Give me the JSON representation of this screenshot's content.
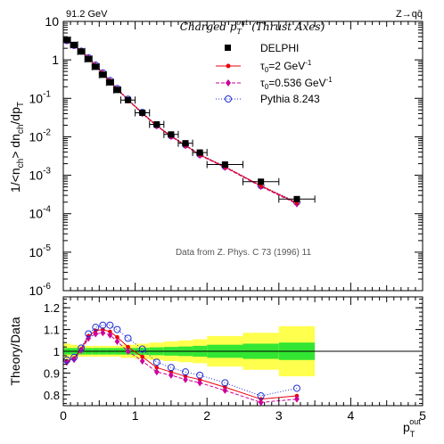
{
  "header": {
    "energy": "91.2 GeV",
    "process": "Z→qq̄"
  },
  "chart_data": [
    {
      "type": "scatter",
      "panel": "main",
      "title": "Charged p_T^out (Thrust Axes)",
      "title_parts": {
        "base": "Charged p",
        "sub": "T",
        "sup": "out",
        "rest": " (Thrust Axes)"
      },
      "ylabel": "1/<n_ch> dn_ch/dp_T",
      "ylabel_parts": {
        "a": "1/<n",
        "a_sub": "ch",
        "b": "> dn",
        "b_sub": "ch",
        "c": "/dp",
        "c_sub": "T"
      },
      "yscale": "log",
      "xlim": [
        0,
        5
      ],
      "ylim": [
        1e-06,
        10
      ],
      "y_ticks": [
        {
          "value": 10,
          "text": "10"
        },
        {
          "value": 1,
          "text": "1"
        },
        {
          "value": 0.1,
          "base": "10",
          "exp": "-1"
        },
        {
          "value": 0.01,
          "base": "10",
          "exp": "-2"
        },
        {
          "value": 0.001,
          "base": "10",
          "exp": "-3"
        },
        {
          "value": 0.0001,
          "base": "10",
          "exp": "-4"
        },
        {
          "value": 1e-05,
          "base": "10",
          "exp": "-5"
        },
        {
          "value": 1e-06,
          "base": "10",
          "exp": "-6"
        }
      ],
      "annotation": "Data from Z. Phys. C 73 (1996) 11",
      "legend_position": "top-right",
      "series": [
        {
          "name": "DELPHI",
          "style": "data",
          "color": "#000000",
          "x": [
            0.05,
            0.15,
            0.25,
            0.35,
            0.45,
            0.55,
            0.65,
            0.75,
            0.9,
            1.1,
            1.3,
            1.5,
            1.7,
            1.9,
            2.25,
            2.75,
            3.25
          ],
          "xerr": [
            0.05,
            0.05,
            0.05,
            0.05,
            0.05,
            0.05,
            0.05,
            0.05,
            0.1,
            0.1,
            0.1,
            0.1,
            0.1,
            0.1,
            0.25,
            0.25,
            0.25
          ],
          "y": [
            3.3,
            2.45,
            1.65,
            1.05,
            0.66,
            0.41,
            0.26,
            0.165,
            0.09,
            0.042,
            0.021,
            0.0115,
            0.0068,
            0.0039,
            0.0019,
            0.00068,
            0.00024
          ]
        },
        {
          "name": "τ_0=2 GeV^-1",
          "label_parts": {
            "base": "τ",
            "sub": "0",
            "rest": "=2 GeV",
            "sup": "-1"
          },
          "style": "line-circle",
          "color": "#e8000b",
          "x": [
            0.05,
            0.15,
            0.25,
            0.35,
            0.45,
            0.55,
            0.65,
            0.75,
            0.9,
            1.1,
            1.3,
            1.5,
            1.7,
            1.9,
            2.25,
            2.75,
            3.25
          ],
          "y": [
            3.15,
            2.37,
            1.67,
            1.13,
            0.72,
            0.45,
            0.283,
            0.175,
            0.092,
            0.041,
            0.0195,
            0.0104,
            0.006,
            0.0034,
            0.00165,
            0.00053,
            0.00019
          ]
        },
        {
          "name": "τ_0=0.536 GeV^-1",
          "label_parts": {
            "base": "τ",
            "sub": "0",
            "rest": "=0.536 GeV",
            "sup": "-1"
          },
          "style": "dash-diamond",
          "color": "#cc0099",
          "x": [
            0.05,
            0.15,
            0.25,
            0.35,
            0.45,
            0.55,
            0.65,
            0.75,
            0.9,
            1.1,
            1.3,
            1.5,
            1.7,
            1.9,
            2.25,
            2.75,
            3.25
          ],
          "y": [
            3.13,
            2.35,
            1.66,
            1.12,
            0.71,
            0.445,
            0.28,
            0.172,
            0.09,
            0.04,
            0.019,
            0.0101,
            0.0059,
            0.0033,
            0.0016,
            0.00051,
            0.00018
          ]
        },
        {
          "name": "Pythia 8.243",
          "style": "dot-open-circle",
          "color": "#1f2fd6",
          "x": [
            0.05,
            0.15,
            0.25,
            0.35,
            0.45,
            0.55,
            0.65,
            0.75,
            0.9,
            1.1,
            1.3,
            1.5,
            1.7,
            1.9,
            2.25,
            2.75,
            3.25
          ],
          "y": [
            3.17,
            2.38,
            1.68,
            1.14,
            0.73,
            0.46,
            0.29,
            0.179,
            0.095,
            0.043,
            0.02,
            0.0107,
            0.0062,
            0.0035,
            0.0017,
            0.00054,
            0.0002
          ]
        }
      ]
    },
    {
      "type": "line",
      "panel": "ratio",
      "ylabel": "Theory/Data",
      "xlabel": "p_T^out",
      "xlabel_parts": {
        "base": "p",
        "sub": "T",
        "sup": "out"
      },
      "xlim": [
        0,
        5
      ],
      "ylim": [
        0.75,
        1.25
      ],
      "x_ticks": [
        0,
        1,
        2,
        3,
        4,
        5
      ],
      "y_ticks": [
        0.8,
        0.9,
        1,
        1.1,
        1.2
      ],
      "bands": {
        "bin_edges": [
          0,
          0.1,
          0.2,
          0.3,
          0.4,
          0.5,
          0.6,
          0.7,
          0.8,
          1.0,
          1.2,
          1.4,
          1.6,
          1.8,
          2.0,
          2.5,
          3.0,
          3.5
        ],
        "stat_half_width": [
          0.015,
          0.015,
          0.015,
          0.015,
          0.015,
          0.015,
          0.015,
          0.015,
          0.015,
          0.016,
          0.018,
          0.02,
          0.022,
          0.025,
          0.03,
          0.035,
          0.04
        ],
        "total_half_width": [
          0.035,
          0.03,
          0.025,
          0.025,
          0.025,
          0.025,
          0.025,
          0.025,
          0.03,
          0.035,
          0.04,
          0.045,
          0.05,
          0.055,
          0.07,
          0.085,
          0.115
        ],
        "stat_color": "#33e633",
        "total_color": "#ffff4d"
      },
      "series": [
        {
          "name": "τ_0=2 GeV^-1",
          "style": "line-circle",
          "color": "#e8000b",
          "x": [
            0.05,
            0.15,
            0.25,
            0.35,
            0.45,
            0.55,
            0.65,
            0.75,
            0.9,
            1.1,
            1.3,
            1.5,
            1.7,
            1.9,
            2.25,
            2.75,
            3.25
          ],
          "y": [
            0.955,
            0.968,
            1.01,
            1.07,
            1.095,
            1.1,
            1.09,
            1.065,
            1.02,
            0.975,
            0.925,
            0.905,
            0.885,
            0.87,
            0.835,
            0.78,
            0.795
          ]
        },
        {
          "name": "τ_0=0.536 GeV^-1",
          "style": "dash-diamond",
          "color": "#cc0099",
          "x": [
            0.05,
            0.15,
            0.25,
            0.35,
            0.45,
            0.55,
            0.65,
            0.75,
            0.9,
            1.1,
            1.3,
            1.5,
            1.7,
            1.9,
            2.25,
            2.75,
            3.25
          ],
          "y": [
            0.95,
            0.962,
            1.005,
            1.06,
            1.08,
            1.085,
            1.075,
            1.045,
            1.0,
            0.955,
            0.905,
            0.89,
            0.87,
            0.855,
            0.82,
            0.765,
            0.78
          ]
        },
        {
          "name": "Pythia 8.243",
          "style": "dot-open-circle",
          "color": "#1f2fd6",
          "x": [
            0.05,
            0.15,
            0.25,
            0.35,
            0.45,
            0.55,
            0.65,
            0.75,
            0.9,
            1.1,
            1.3,
            1.5,
            1.7,
            1.9,
            2.25,
            2.75,
            3.25
          ],
          "y": [
            0.96,
            0.972,
            1.015,
            1.08,
            1.11,
            1.12,
            1.12,
            1.1,
            1.06,
            1.01,
            0.95,
            0.925,
            0.905,
            0.89,
            0.855,
            0.795,
            0.83
          ]
        }
      ]
    }
  ]
}
